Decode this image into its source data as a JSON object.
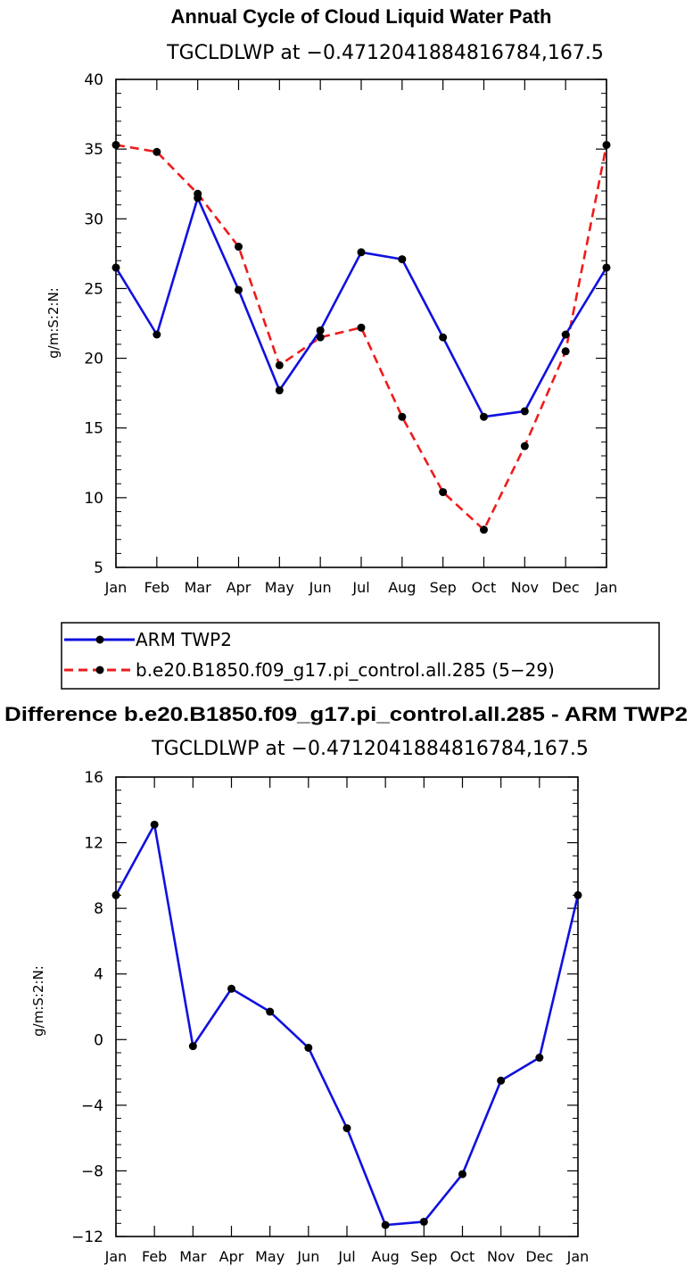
{
  "colors": {
    "obs": "#1010e0",
    "model": "#ee1b1b",
    "marker": "#000000"
  },
  "legend": {
    "items": [
      {
        "label": "ARM TWP2",
        "color": "#1010e0",
        "dash": "solid"
      },
      {
        "label": "b.e20.B1850.f09_g17.pi_control.all.285 (5−29)",
        "color": "#ee1b1b",
        "dash": "dashed"
      }
    ]
  },
  "chart_data": [
    {
      "type": "line",
      "title": "Annual Cycle of Cloud Liquid Water Path",
      "subtitle": "TGCLDLWP at −0.4712041884816784,167.5",
      "ylabel": "g/m:S:2:N:",
      "xlabel": "",
      "categories": [
        "Jan",
        "Feb",
        "Mar",
        "Apr",
        "May",
        "Jun",
        "Jul",
        "Aug",
        "Sep",
        "Oct",
        "Nov",
        "Dec",
        "Jan"
      ],
      "ylim": [
        5,
        40
      ],
      "yticks": [
        5,
        10,
        15,
        20,
        25,
        30,
        35,
        40
      ],
      "ytick_labels": [
        "5",
        "10",
        "15",
        "20",
        "25",
        "30",
        "35",
        "40"
      ],
      "series": [
        {
          "name": "ARM TWP2",
          "color": "#1010e0",
          "dash": "solid",
          "values": [
            26.5,
            21.7,
            31.5,
            24.9,
            17.7,
            22.0,
            27.6,
            27.1,
            21.5,
            15.8,
            16.2,
            21.7,
            26.5
          ]
        },
        {
          "name": "b.e20.B1850.f09_g17.pi_control.all.285 (5−29)",
          "color": "#ee1b1b",
          "dash": "dashed",
          "values": [
            35.3,
            34.8,
            31.8,
            28.0,
            19.5,
            21.5,
            22.2,
            15.8,
            10.4,
            7.7,
            13.7,
            20.5,
            35.3
          ]
        }
      ]
    },
    {
      "type": "line",
      "title": "Difference b.e20.B1850.f09_g17.pi_control.all.285 - ARM TWP2",
      "subtitle": "TGCLDLWP at −0.4712041884816784,167.5",
      "ylabel": "g/m:S:2:N:",
      "xlabel": "",
      "categories": [
        "Jan",
        "Feb",
        "Mar",
        "Apr",
        "May",
        "Jun",
        "Jul",
        "Aug",
        "Sep",
        "Oct",
        "Nov",
        "Dec",
        "Jan"
      ],
      "ylim": [
        -12,
        16
      ],
      "yticks": [
        -12,
        -8,
        -4,
        0,
        4,
        8,
        12,
        16
      ],
      "ytick_labels": [
        "−12",
        "−8",
        "−4",
        "0",
        "4",
        "8",
        "12",
        "16"
      ],
      "series": [
        {
          "color": "#1010e0",
          "dash": "solid",
          "values": [
            8.8,
            13.1,
            -0.4,
            3.1,
            1.7,
            -0.5,
            -5.4,
            -11.3,
            -11.1,
            -8.2,
            -2.5,
            -1.1,
            8.8
          ]
        }
      ]
    }
  ]
}
